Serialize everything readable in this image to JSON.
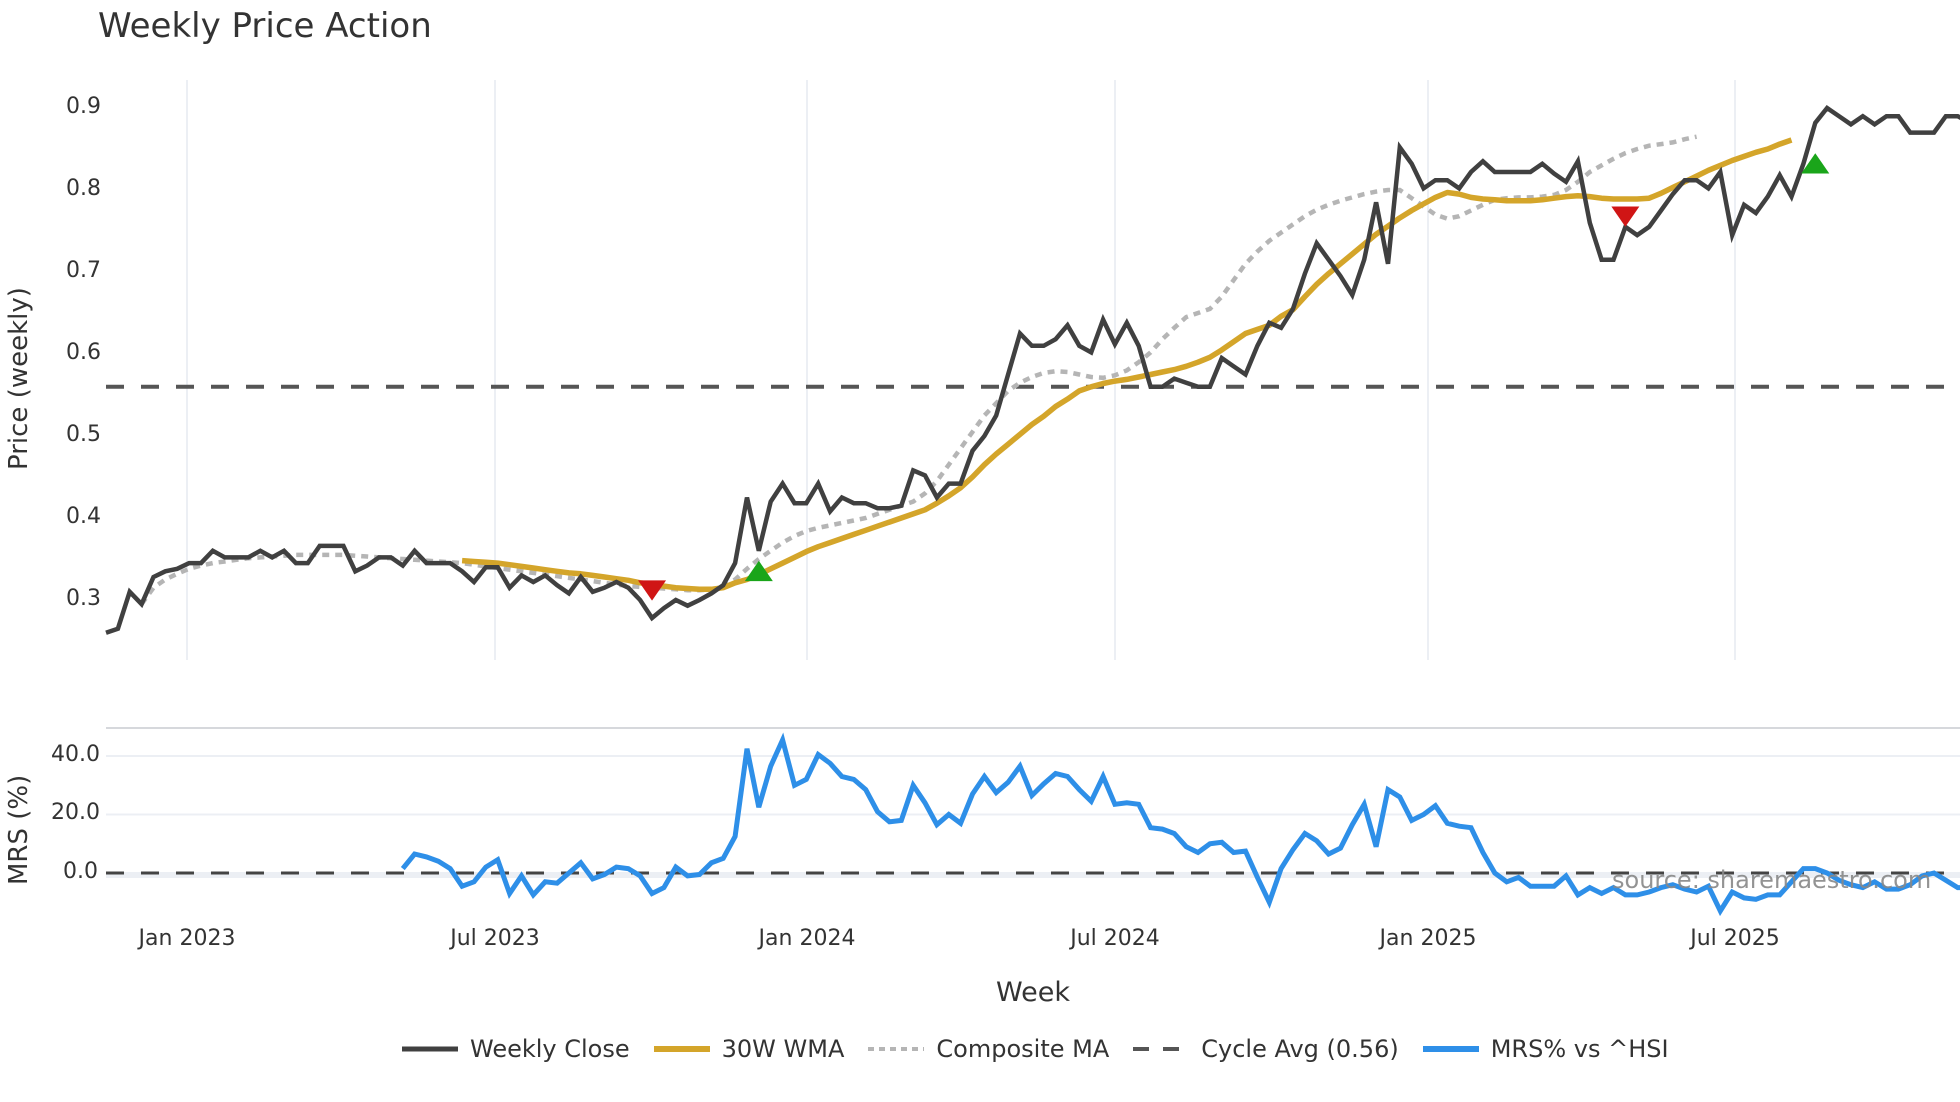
{
  "title": "Weekly Price Action",
  "price_panel": {
    "ylabel": "Price (weekly)",
    "yticks": [
      "0.9",
      "0.8",
      "0.7",
      "0.6",
      "0.5",
      "0.4",
      "0.3"
    ]
  },
  "mrs_panel": {
    "ylabel": "MRS (%)",
    "yticks": [
      "40.0",
      "20.0",
      "0.0"
    ]
  },
  "xaxis": {
    "label": "Week",
    "ticks": [
      "Jan 2023",
      "Jul 2023",
      "Jan 2024",
      "Jul 2024",
      "Jan 2025",
      "Jul 2025"
    ]
  },
  "legend": [
    {
      "label": "Weekly Close",
      "color": "#404040",
      "style": "solid"
    },
    {
      "label": "30W WMA",
      "color": "#d4a52a",
      "style": "solid"
    },
    {
      "label": "Composite MA",
      "color": "#b5b5b5",
      "style": "dotted"
    },
    {
      "label": "Cycle Avg (0.56)",
      "color": "#555555",
      "style": "dashed"
    },
    {
      "label": "MRS% vs ^HSI",
      "color": "#2e8fe8",
      "style": "solid"
    }
  ],
  "watermark": "source: sharemaestro.com",
  "colors": {
    "close": "#404040",
    "wma": "#d4a52a",
    "composite": "#b5b5b5",
    "cycle": "#555555",
    "mrs": "#2e8fe8",
    "buy": "#1aa51a",
    "sell": "#d01515",
    "grid": "#eceff4"
  },
  "chart_data": [
    {
      "type": "line",
      "title": "Weekly Price Action",
      "xlabel": "",
      "ylabel": "Price (weekly)",
      "ylim": [
        0.23,
        0.93
      ],
      "x_ticks": [
        "Jan 2023",
        "Jul 2023",
        "Jan 2024",
        "Jul 2024",
        "Jan 2025",
        "Jul 2025"
      ],
      "x_start_week_offset": -7,
      "grid": true,
      "series": [
        {
          "name": "Weekly Close",
          "values": [
            0.26,
            0.265,
            0.31,
            0.295,
            0.328,
            0.335,
            0.338,
            0.345,
            0.345,
            0.36,
            0.352,
            0.352,
            0.352,
            0.36,
            0.352,
            0.36,
            0.345,
            0.345,
            0.366,
            0.366,
            0.366,
            0.335,
            0.342,
            0.352,
            0.352,
            0.342,
            0.36,
            0.345,
            0.345,
            0.345,
            0.335,
            0.322,
            0.34,
            0.34,
            0.315,
            0.33,
            0.322,
            0.33,
            0.318,
            0.308,
            0.328,
            0.31,
            0.315,
            0.322,
            0.315,
            0.3,
            0.278,
            0.29,
            0.3,
            0.293,
            0.3,
            0.308,
            0.318,
            0.345,
            0.425,
            0.36,
            0.42,
            0.442,
            0.418,
            0.418,
            0.442,
            0.408,
            0.425,
            0.418,
            0.418,
            0.412,
            0.412,
            0.415,
            0.458,
            0.452,
            0.425,
            0.442,
            0.442,
            0.482,
            0.5,
            0.525,
            0.575,
            0.625,
            0.61,
            0.61,
            0.618,
            0.635,
            0.61,
            0.602,
            0.642,
            0.612,
            0.638,
            0.61,
            0.56,
            0.56,
            0.57,
            0.565,
            0.56,
            0.56,
            0.595,
            0.585,
            0.575,
            0.61,
            0.638,
            0.632,
            0.655,
            0.698,
            0.735,
            0.715,
            0.695,
            0.672,
            0.715,
            0.785,
            0.71,
            0.852,
            0.832,
            0.802,
            0.812,
            0.812,
            0.802,
            0.822,
            0.835,
            0.822,
            0.822,
            0.822,
            0.822,
            0.832,
            0.82,
            0.81,
            0.835,
            0.76,
            0.715,
            0.715,
            0.755,
            0.745,
            0.755,
            0.775,
            0.795,
            0.812,
            0.812,
            0.802,
            0.822,
            0.745,
            0.782,
            0.772,
            0.792,
            0.818,
            0.792,
            0.832,
            0.882,
            0.9,
            0.89,
            0.88,
            0.89,
            0.88,
            0.89,
            0.89,
            0.87,
            0.87,
            0.87,
            0.89,
            0.89,
            0.882
          ]
        },
        {
          "name": "30W WMA",
          "start_index": 30,
          "values": [
            0.348,
            0.347,
            0.346,
            0.345,
            0.343,
            0.341,
            0.339,
            0.337,
            0.335,
            0.333,
            0.332,
            0.33,
            0.328,
            0.326,
            0.324,
            0.321,
            0.319,
            0.317,
            0.315,
            0.314,
            0.313,
            0.313,
            0.315,
            0.321,
            0.325,
            0.331,
            0.338,
            0.345,
            0.352,
            0.359,
            0.365,
            0.37,
            0.375,
            0.38,
            0.385,
            0.39,
            0.395,
            0.4,
            0.405,
            0.41,
            0.418,
            0.427,
            0.437,
            0.45,
            0.465,
            0.478,
            0.49,
            0.502,
            0.514,
            0.524,
            0.536,
            0.545,
            0.555,
            0.56,
            0.564,
            0.567,
            0.569,
            0.572,
            0.575,
            0.578,
            0.581,
            0.585,
            0.59,
            0.596,
            0.605,
            0.615,
            0.625,
            0.63,
            0.635,
            0.646,
            0.654,
            0.67,
            0.685,
            0.698,
            0.71,
            0.722,
            0.734,
            0.746,
            0.756,
            0.766,
            0.775,
            0.783,
            0.791,
            0.797,
            0.795,
            0.791,
            0.789,
            0.788,
            0.787,
            0.787,
            0.787,
            0.788,
            0.79,
            0.792,
            0.793,
            0.792,
            0.79,
            0.789,
            0.789,
            0.789,
            0.79,
            0.796,
            0.803,
            0.81,
            0.817,
            0.824,
            0.83,
            0.836,
            0.841,
            0.846,
            0.85,
            0.856,
            0.861
          ]
        },
        {
          "name": "Composite MA",
          "start_index": 3,
          "values": [
            0.295,
            0.315,
            0.325,
            0.332,
            0.338,
            0.342,
            0.345,
            0.347,
            0.349,
            0.351,
            0.352,
            0.353,
            0.354,
            0.355,
            0.355,
            0.355,
            0.355,
            0.355,
            0.354,
            0.353,
            0.352,
            0.351,
            0.35,
            0.349,
            0.348,
            0.347,
            0.346,
            0.345,
            0.343,
            0.341,
            0.339,
            0.337,
            0.335,
            0.333,
            0.331,
            0.329,
            0.327,
            0.325,
            0.323,
            0.321,
            0.319,
            0.317,
            0.316,
            0.315,
            0.314,
            0.313,
            0.312,
            0.312,
            0.313,
            0.315,
            0.325,
            0.338,
            0.35,
            0.36,
            0.37,
            0.378,
            0.384,
            0.388,
            0.391,
            0.394,
            0.397,
            0.4,
            0.405,
            0.41,
            0.415,
            0.42,
            0.43,
            0.445,
            0.465,
            0.485,
            0.505,
            0.525,
            0.54,
            0.555,
            0.565,
            0.572,
            0.577,
            0.579,
            0.578,
            0.575,
            0.572,
            0.571,
            0.574,
            0.58,
            0.59,
            0.602,
            0.618,
            0.632,
            0.645,
            0.65,
            0.655,
            0.67,
            0.69,
            0.71,
            0.725,
            0.738,
            0.748,
            0.758,
            0.768,
            0.776,
            0.782,
            0.787,
            0.791,
            0.795,
            0.798,
            0.8,
            0.8,
            0.79,
            0.78,
            0.77,
            0.765,
            0.768,
            0.775,
            0.782,
            0.788,
            0.79,
            0.791,
            0.791,
            0.792,
            0.794,
            0.8,
            0.81,
            0.822,
            0.83,
            0.838,
            0.845,
            0.85,
            0.854,
            0.856,
            0.858,
            0.862,
            0.865
          ]
        },
        {
          "name": "Cycle Avg (0.56)",
          "constant": 0.56
        }
      ],
      "markers": [
        {
          "type": "sell",
          "shape": "triangle-down",
          "week_index": 46,
          "value": 0.312
        },
        {
          "type": "buy",
          "shape": "triangle-up",
          "week_index": 55,
          "value": 0.335
        },
        {
          "type": "sell",
          "shape": "triangle-down",
          "week_index": 128,
          "value": 0.768
        },
        {
          "type": "buy",
          "shape": "triangle-up",
          "week_index": 144,
          "value": 0.832
        }
      ]
    },
    {
      "type": "line",
      "title": "",
      "xlabel": "Week",
      "ylabel": "MRS (%)",
      "ylim": [
        -15,
        50
      ],
      "grid": true,
      "series": [
        {
          "name": "MRS% vs ^HSI",
          "start_index": 25,
          "values": [
            1.5,
            6.5,
            5.5,
            4,
            1.5,
            -4.5,
            -3,
            2,
            4.5,
            -7,
            -1,
            -7.5,
            -3,
            -3.5,
            0,
            3.5,
            -2,
            -0.5,
            2,
            1.5,
            -1,
            -7,
            -5,
            2,
            -1,
            -0.5,
            3.5,
            5,
            12.5,
            42.5,
            22.5,
            36.5,
            45.5,
            30,
            32,
            40.5,
            37.5,
            33,
            32,
            28.5,
            21,
            17.5,
            18,
            30,
            24,
            16.5,
            20,
            17,
            27,
            33,
            27.5,
            31,
            36.5,
            26.5,
            30.5,
            34,
            33,
            28.5,
            24.5,
            33,
            23.5,
            24,
            23.5,
            15.5,
            15,
            13.5,
            9,
            7,
            10,
            10.5,
            7,
            7.5,
            -1.5,
            -10,
            1.5,
            8,
            13.5,
            11,
            6.5,
            8.5,
            16.5,
            23.5,
            9,
            28.5,
            26,
            18,
            20,
            23,
            17,
            16,
            15.5,
            7,
            0,
            -3,
            -1.5,
            -4.5,
            -4.5,
            -4.5,
            -1,
            -7.5,
            -5,
            -7,
            -5,
            -7.5,
            -7.5,
            -6.5,
            -5,
            -4,
            -5.5,
            -6.5,
            -4.5,
            -13,
            -6.5,
            -8.5,
            -9,
            -7.5,
            -7.5,
            -3,
            1.5,
            1.5,
            0,
            -2.5,
            -4,
            -5,
            -3,
            -5.5,
            -5.5,
            -4,
            -1,
            0,
            -2.5,
            -5,
            -5,
            -5,
            -1,
            0,
            -4.5
          ]
        },
        {
          "name": "zero line",
          "constant": 0,
          "style": "dashed"
        }
      ]
    }
  ]
}
